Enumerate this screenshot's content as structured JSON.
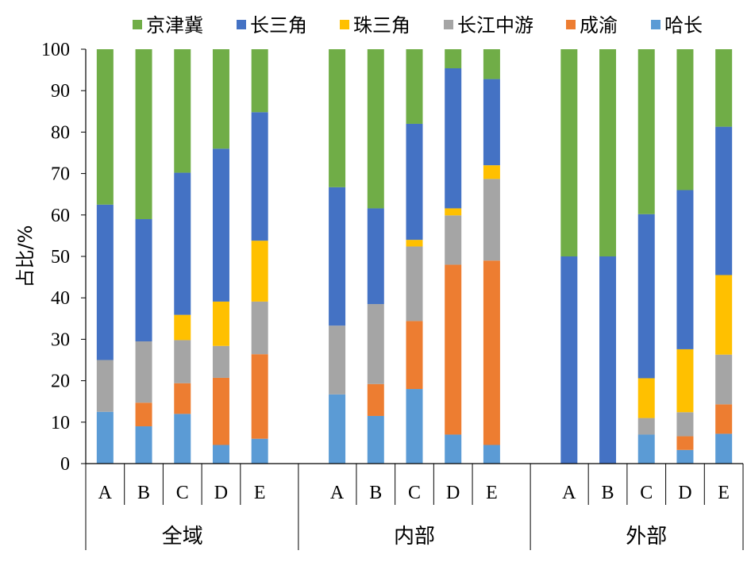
{
  "chart_data": {
    "type": "bar",
    "stacked": true,
    "ylabel": "占比/%",
    "ylim": [
      0,
      100
    ],
    "yticks": [
      0,
      10,
      20,
      30,
      40,
      50,
      60,
      70,
      80,
      90,
      100
    ],
    "grid": false,
    "legend": {
      "placement": "top"
    },
    "groups": [
      {
        "label": "全域",
        "categories": [
          "A",
          "B",
          "C",
          "D",
          "E"
        ]
      },
      {
        "label": "内部",
        "categories": [
          "A",
          "B",
          "C",
          "D",
          "E"
        ]
      },
      {
        "label": "外部",
        "categories": [
          "A",
          "B",
          "C",
          "D",
          "E"
        ]
      }
    ],
    "series": [
      {
        "name": "哈长",
        "color": "#5B9BD5",
        "values": [
          12.5,
          9,
          12,
          4.5,
          6,
          16.7,
          11.5,
          18,
          7,
          4.5,
          0,
          0,
          7,
          3.3,
          7.2
        ]
      },
      {
        "name": "成渝",
        "color": "#ED7D31",
        "values": [
          0,
          5.7,
          7.4,
          16.2,
          20.4,
          0,
          7.7,
          16.4,
          41,
          44.5,
          0,
          0,
          0,
          3.3,
          7.1
        ]
      },
      {
        "name": "长江中游",
        "color": "#A5A5A5",
        "values": [
          12.5,
          14.8,
          10.4,
          7.7,
          12.7,
          16.6,
          19.3,
          18,
          11.9,
          19.7,
          0,
          0,
          4,
          5.8,
          12
        ]
      },
      {
        "name": "珠三角",
        "color": "#FFC000",
        "values": [
          0,
          0,
          6.1,
          10.7,
          14.7,
          0,
          0,
          1.6,
          1.7,
          3.3,
          0,
          0,
          9.6,
          15.2,
          19.2
        ]
      },
      {
        "name": "长三角",
        "color": "#4472C4",
        "values": [
          37.5,
          29.5,
          34.3,
          36.9,
          31,
          33.4,
          23.1,
          28,
          33.8,
          20.8,
          50,
          50,
          39.6,
          38.4,
          35.8
        ]
      },
      {
        "name": "京津冀",
        "color": "#70AD47",
        "values": [
          37.5,
          41,
          29.8,
          24,
          15.2,
          33.3,
          38.4,
          18,
          4.6,
          7.2,
          50,
          50,
          39.8,
          34,
          18.7
        ]
      }
    ],
    "legend_order": [
      "京津冀",
      "长三角",
      "珠三角",
      "长江中游",
      "成渝",
      "哈长"
    ]
  }
}
